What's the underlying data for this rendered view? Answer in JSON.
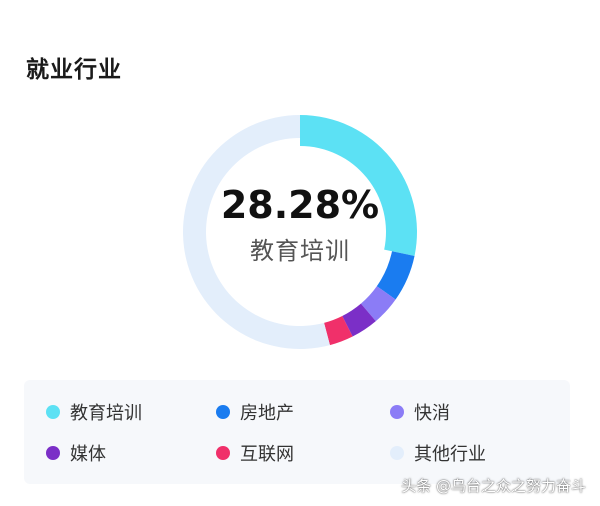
{
  "title": "就业行业",
  "center": {
    "value": "28.28%",
    "label": "教育培训"
  },
  "watermark": "头条 @乌台之众之努力奋斗",
  "chart_data": {
    "type": "pie",
    "donut": true,
    "highlight_index": 0,
    "slices": [
      {
        "label": "教育培训",
        "value": 28.28,
        "color": "#5ce1f4"
      },
      {
        "label": "房地产",
        "value": 6.5,
        "color": "#1a7cf0"
      },
      {
        "label": "快消",
        "value": 4.0,
        "color": "#8b7cf6"
      },
      {
        "label": "媒体",
        "value": 3.8,
        "color": "#7b2fc7"
      },
      {
        "label": "互联网",
        "value": 3.3,
        "color": "#f0306a"
      },
      {
        "label": "其他行业",
        "value": 54.12,
        "color": "#e3eefb"
      }
    ],
    "legend": [
      {
        "label": "教育培训",
        "color": "#5ce1f4"
      },
      {
        "label": "房地产",
        "color": "#1a7cf0"
      },
      {
        "label": "快消",
        "color": "#8b7cf6"
      },
      {
        "label": "媒体",
        "color": "#7b2fc7"
      },
      {
        "label": "互联网",
        "color": "#f0306a"
      },
      {
        "label": "其他行业",
        "color": "#e3eefb"
      }
    ]
  }
}
